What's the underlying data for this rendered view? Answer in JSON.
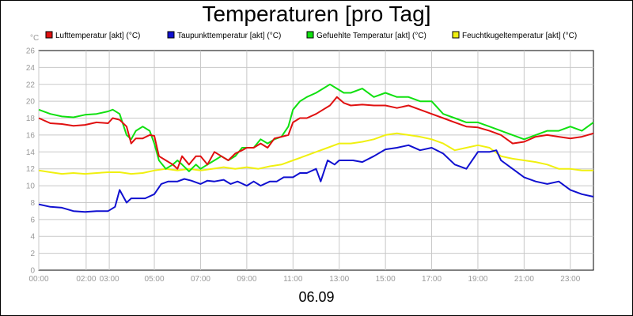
{
  "chart_data": {
    "type": "line",
    "title": "Temperaturen [pro Tag]",
    "date_label": "06.09",
    "ylabel": "°C",
    "ylim": [
      0,
      26
    ],
    "yticks": [
      0,
      2,
      4,
      6,
      8,
      10,
      12,
      14,
      16,
      18,
      20,
      22,
      24,
      26
    ],
    "xlim": [
      0,
      24
    ],
    "xticks": [
      {
        "h": 0,
        "label": "00:00"
      },
      {
        "h": 2.05,
        "label": "02:00"
      },
      {
        "h": 3.05,
        "label": "03:00"
      },
      {
        "h": 5,
        "label": "05:00"
      },
      {
        "h": 7,
        "label": "07:00"
      },
      {
        "h": 9,
        "label": "09:00"
      },
      {
        "h": 11,
        "label": "11:00"
      },
      {
        "h": 13,
        "label": "13:00"
      },
      {
        "h": 15,
        "label": "15:00"
      },
      {
        "h": 17,
        "label": "17:00"
      },
      {
        "h": 19,
        "label": "19:00"
      },
      {
        "h": 21,
        "label": "21:00"
      },
      {
        "h": 23,
        "label": "23:00"
      }
    ],
    "legend_position": "top",
    "grid": true,
    "series": [
      {
        "name": "Lufttemperatur [akt] (°C)",
        "color": "#e01010",
        "x": [
          0,
          0.5,
          1,
          1.5,
          2,
          2.5,
          3,
          3.2,
          3.5,
          3.8,
          4,
          4.2,
          4.5,
          4.8,
          5,
          5.2,
          5.5,
          5.8,
          6,
          6.2,
          6.5,
          6.8,
          7,
          7.3,
          7.6,
          7.9,
          8.2,
          8.5,
          8.8,
          9,
          9.3,
          9.6,
          9.9,
          10.2,
          10.5,
          10.8,
          11,
          11.3,
          11.6,
          12,
          12.3,
          12.6,
          12.9,
          13.2,
          13.5,
          14,
          14.5,
          15,
          15.5,
          16,
          16.5,
          17,
          17.5,
          18,
          18.5,
          19,
          19.5,
          20,
          20.5,
          21,
          21.5,
          22,
          22.5,
          23,
          23.5,
          24
        ],
        "values": [
          18,
          17.4,
          17.3,
          17.1,
          17.2,
          17.5,
          17.4,
          18,
          17.8,
          17,
          15,
          15.6,
          15.6,
          16,
          15.9,
          13.5,
          13,
          12.5,
          12,
          13.5,
          12.5,
          13.5,
          13.5,
          12.5,
          14,
          13.5,
          13,
          13.8,
          14.2,
          14.5,
          14.5,
          15,
          14.5,
          15.6,
          15.8,
          16,
          17.5,
          18,
          18,
          18.5,
          19,
          19.5,
          20.5,
          19.8,
          19.5,
          19.6,
          19.5,
          19.5,
          19.2,
          19.5,
          19,
          18.5,
          18,
          17.5,
          17,
          16.9,
          16.5,
          16,
          15,
          15.2,
          15.8,
          16,
          15.8,
          15.6,
          15.8,
          16.2
        ]
      },
      {
        "name": "Taupunkttemperatur [akt] (°C)",
        "color": "#1010d0",
        "x": [
          0,
          0.5,
          1,
          1.5,
          2,
          2.5,
          3,
          3.3,
          3.5,
          3.8,
          4,
          4.3,
          4.6,
          5,
          5.3,
          5.6,
          6,
          6.3,
          6.6,
          7,
          7.3,
          7.6,
          8,
          8.3,
          8.6,
          9,
          9.3,
          9.6,
          10,
          10.3,
          10.6,
          11,
          11.3,
          11.6,
          12,
          12.2,
          12.5,
          12.8,
          13,
          13.3,
          13.6,
          14,
          14.5,
          15,
          15.5,
          16,
          16.5,
          17,
          17.5,
          18,
          18.5,
          19,
          19.5,
          19.8,
          20,
          20.5,
          21,
          21.5,
          22,
          22.5,
          23,
          23.5,
          24
        ],
        "values": [
          7.8,
          7.5,
          7.4,
          7,
          6.9,
          7,
          7,
          7.5,
          9.5,
          8,
          8.5,
          8.5,
          8.5,
          9,
          10.2,
          10.5,
          10.5,
          10.8,
          10.6,
          10.2,
          10.6,
          10.5,
          10.7,
          10.2,
          10.5,
          10,
          10.5,
          10,
          10.5,
          10.5,
          11,
          11,
          11.5,
          11.5,
          12,
          10.5,
          13,
          12.5,
          13,
          13,
          13,
          12.8,
          13.5,
          14.3,
          14.5,
          14.8,
          14.2,
          14.5,
          13.8,
          12.5,
          12,
          14,
          14,
          14.2,
          13,
          12,
          11,
          10.5,
          10.2,
          10.5,
          9.5,
          9,
          8.7
        ]
      },
      {
        "name": "Gefuehlte Temperatur [akt] (°C)",
        "color": "#10e010",
        "x": [
          0,
          0.5,
          1,
          1.5,
          2,
          2.5,
          3,
          3.2,
          3.5,
          3.8,
          4,
          4.2,
          4.5,
          4.8,
          5,
          5.2,
          5.5,
          5.8,
          6,
          6.2,
          6.5,
          6.8,
          7,
          7.3,
          7.6,
          7.9,
          8.2,
          8.5,
          8.8,
          9,
          9.3,
          9.6,
          9.9,
          10.2,
          10.5,
          10.8,
          11,
          11.3,
          11.6,
          12,
          12.3,
          12.6,
          12.9,
          13.2,
          13.5,
          14,
          14.5,
          15,
          15.5,
          16,
          16.5,
          17,
          17.5,
          18,
          18.5,
          19,
          19.5,
          20,
          20.5,
          21,
          21.5,
          22,
          22.5,
          23,
          23.5,
          24
        ],
        "values": [
          19,
          18.5,
          18.2,
          18.1,
          18.4,
          18.5,
          18.8,
          19,
          18.5,
          16,
          15.5,
          16.5,
          17,
          16.5,
          15,
          13,
          12,
          12.5,
          13,
          12.5,
          11.7,
          12.5,
          12,
          12.5,
          13,
          13.5,
          13,
          13.5,
          14.5,
          14.5,
          14.5,
          15.5,
          15,
          15.5,
          15.8,
          17,
          19,
          20,
          20.5,
          21,
          21.5,
          22,
          21.5,
          21,
          21,
          21.5,
          20.5,
          21,
          20.5,
          20.5,
          20,
          20,
          18.5,
          18,
          17.5,
          17.5,
          17,
          16.5,
          16,
          15.5,
          16,
          16.5,
          16.5,
          17,
          16.5,
          17.5
        ]
      },
      {
        "name": "Feuchtkugeltemperatur [akt] (°C)",
        "color": "#f0f010",
        "x": [
          0,
          0.5,
          1,
          1.5,
          2,
          2.5,
          3,
          3.5,
          4,
          4.5,
          5,
          5.5,
          6,
          6.5,
          7,
          7.5,
          8,
          8.5,
          9,
          9.5,
          10,
          10.5,
          11,
          11.5,
          12,
          12.5,
          13,
          13.5,
          14,
          14.5,
          15,
          15.5,
          16,
          16.5,
          17,
          17.5,
          18,
          18.5,
          19,
          19.5,
          20,
          20.5,
          21,
          21.5,
          22,
          22.5,
          23,
          23.5,
          24
        ],
        "values": [
          11.8,
          11.6,
          11.4,
          11.5,
          11.4,
          11.5,
          11.6,
          11.6,
          11.4,
          11.5,
          11.8,
          12,
          11.8,
          12,
          11.8,
          12,
          12.2,
          12,
          12.2,
          12,
          12.3,
          12.5,
          13,
          13.5,
          14,
          14.5,
          15,
          15,
          15.2,
          15.5,
          16,
          16.2,
          16,
          15.8,
          15.5,
          15,
          14.2,
          14.5,
          14.8,
          14.5,
          13.5,
          13.2,
          13,
          12.8,
          12.5,
          12,
          12,
          11.8,
          11.8
        ]
      }
    ]
  }
}
